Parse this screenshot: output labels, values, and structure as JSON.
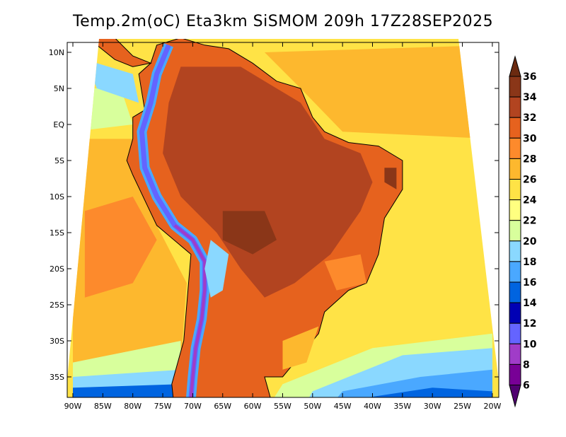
{
  "title": "Temp.2m(oC) Eta3km SiSMOM 209h 17Z28SEP2025",
  "lat_labels": [
    "10N",
    "5N",
    "EQ",
    "5S",
    "10S",
    "15S",
    "20S",
    "25S",
    "30S",
    "35S"
  ],
  "lon_labels": [
    "90W",
    "85W",
    "80W",
    "75W",
    "70W",
    "65W",
    "60W",
    "55W",
    "50W",
    "45W",
    "40W",
    "35W",
    "30W",
    "25W",
    "20W"
  ],
  "colorbar": {
    "labels": [
      "36",
      "34",
      "32",
      "30",
      "28",
      "26",
      "24",
      "22",
      "20",
      "18",
      "16",
      "14",
      "12",
      "10",
      "8",
      "6"
    ],
    "colors": [
      "#6b2a10",
      "#8a3618",
      "#b24420",
      "#e6621e",
      "#fd8a2c",
      "#fdb82e",
      "#ffe346",
      "#ffff80",
      "#d8ff9c",
      "#8ad8ff",
      "#4aa8ff",
      "#0064e0",
      "#0000b4",
      "#6464ff",
      "#a03cc8",
      "#780096",
      "#500070"
    ]
  }
}
